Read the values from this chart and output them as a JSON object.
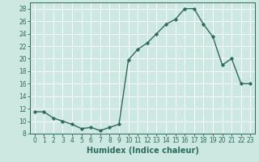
{
  "x": [
    0,
    1,
    2,
    3,
    4,
    5,
    6,
    7,
    8,
    9,
    10,
    11,
    12,
    13,
    14,
    15,
    16,
    17,
    18,
    19,
    20,
    21,
    22,
    23
  ],
  "y": [
    11.5,
    11.5,
    10.5,
    10.0,
    9.5,
    8.8,
    9.0,
    8.5,
    9.0,
    9.5,
    19.8,
    21.5,
    22.5,
    24.0,
    25.5,
    26.3,
    28.0,
    28.0,
    25.5,
    23.5,
    19.0,
    20.0,
    16.0,
    16.0
  ],
  "line_color": "#2e6b5e",
  "marker": "D",
  "marker_size": 2.2,
  "linewidth": 1.0,
  "xlabel": "Humidex (Indice chaleur)",
  "xlim": [
    -0.5,
    23.5
  ],
  "ylim": [
    8,
    29
  ],
  "yticks": [
    8,
    10,
    12,
    14,
    16,
    18,
    20,
    22,
    24,
    26,
    28
  ],
  "xticks": [
    0,
    1,
    2,
    3,
    4,
    5,
    6,
    7,
    8,
    9,
    10,
    11,
    12,
    13,
    14,
    15,
    16,
    17,
    18,
    19,
    20,
    21,
    22,
    23
  ],
  "bg_color": "#cce8e0",
  "grid_color": "#ffffff",
  "tick_label_fontsize": 5.5,
  "xlabel_fontsize": 7.0,
  "spine_color": "#2e6b5e"
}
